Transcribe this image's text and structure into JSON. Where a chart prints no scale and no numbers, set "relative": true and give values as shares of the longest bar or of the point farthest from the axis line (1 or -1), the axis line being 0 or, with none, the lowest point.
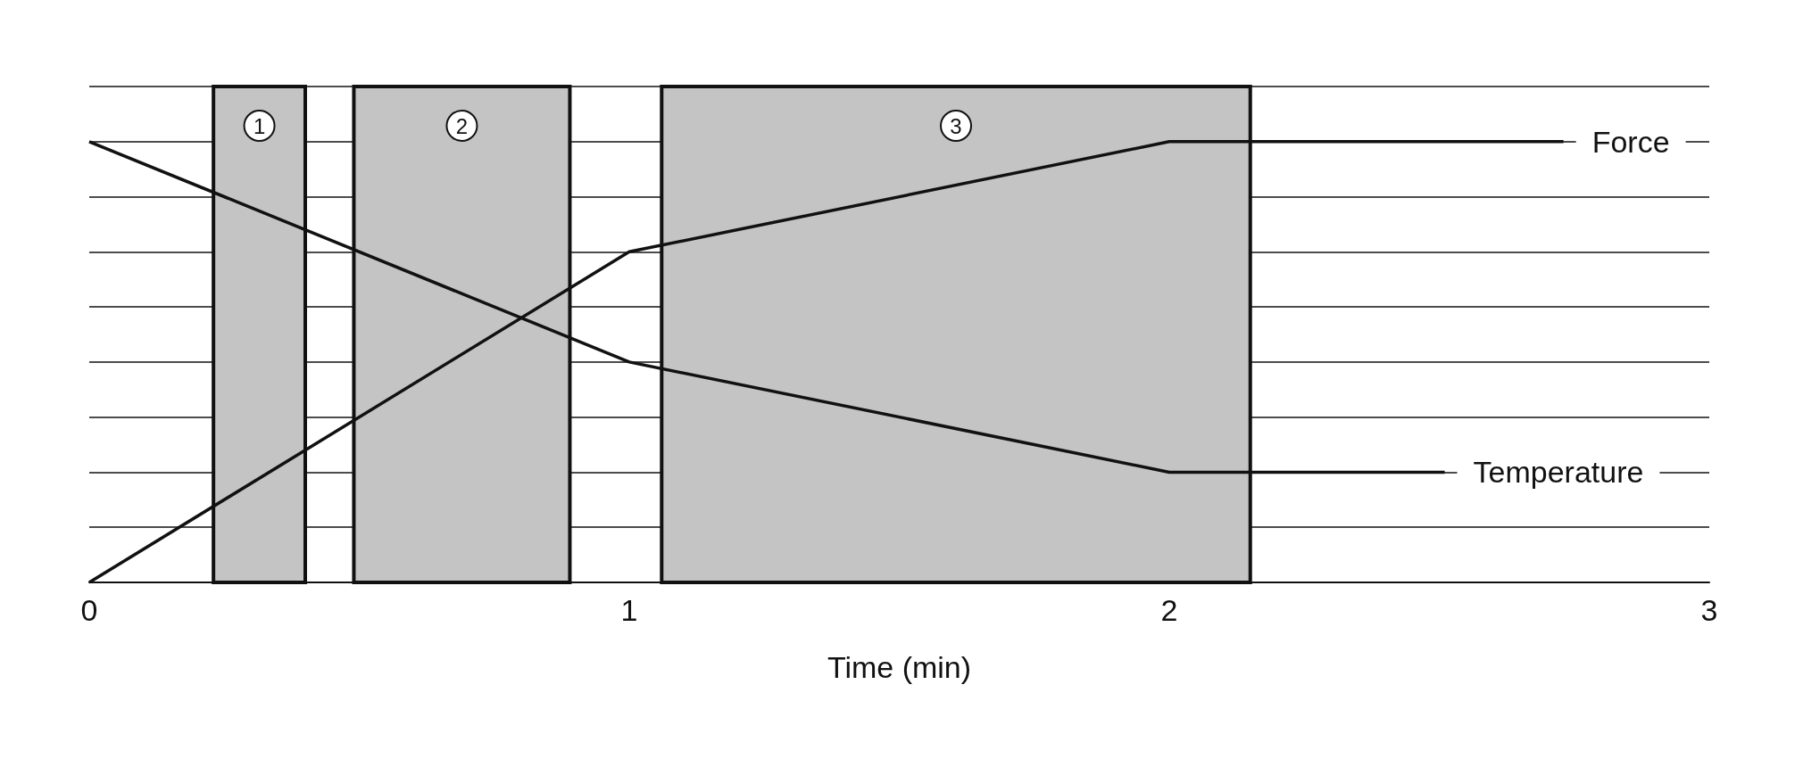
{
  "chart_data": {
    "type": "line",
    "relative": true,
    "xlabel": "Time (min)",
    "xlim": [
      0,
      3
    ],
    "xticks": [
      0,
      1,
      2,
      3
    ],
    "grid": "y",
    "legend": false,
    "marker": "none",
    "line_style": "solid",
    "series": [
      {
        "name": "Force",
        "color": "#111111",
        "x": [
          0,
          1,
          2,
          2.73
        ],
        "values": [
          0,
          0.75,
          1,
          1
        ]
      },
      {
        "name": "Temperature",
        "color": "#111111",
        "x": [
          0,
          1,
          2,
          2.51
        ],
        "values": [
          1,
          0.5,
          0.25,
          0.25
        ]
      }
    ],
    "bands": [
      {
        "axis": "x",
        "from": 0.23,
        "to": 0.4,
        "label": "1",
        "color": "#c4c4c4"
      },
      {
        "axis": "x",
        "from": 0.49,
        "to": 0.89,
        "label": "2",
        "color": "#c4c4c4"
      },
      {
        "axis": "x",
        "from": 1.06,
        "to": 2.15,
        "label": "3",
        "color": "#c4c4c4"
      }
    ]
  }
}
